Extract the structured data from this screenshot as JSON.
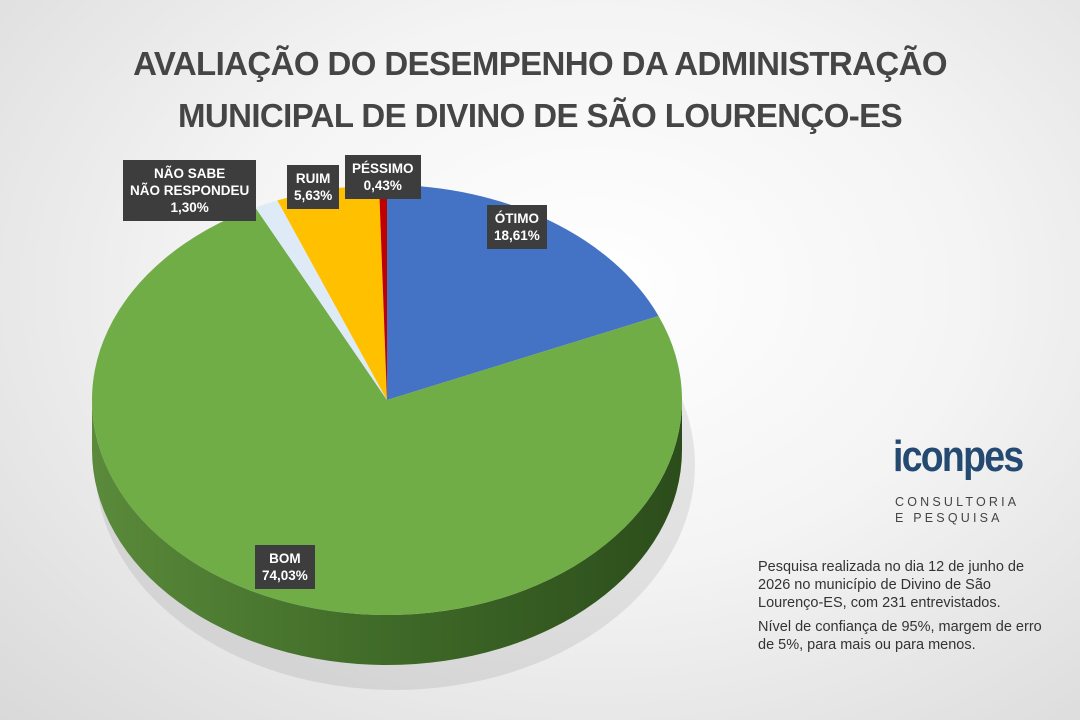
{
  "chart_data": {
    "type": "pie",
    "title": "AVALIAÇÃO DO DESEMPENHO DA ADMINISTRAÇÃO\nMUNICIPAL DE DIVINO DE SÃO LOURENÇO-ES",
    "categories": [
      "ÓTIMO",
      "BOM",
      "NÃO SABE\nNÃO RESPONDEU",
      "RUIM",
      "PÉSSIMO"
    ],
    "values": [
      18.61,
      74.03,
      1.3,
      5.63,
      0.43
    ],
    "value_labels": [
      "18,61%",
      "74,03%",
      "1,30%",
      "5,63%",
      "0,43%"
    ],
    "colors": [
      "#4472c4",
      "#70ad47",
      "#deebf7",
      "#ffc000",
      "#c00000"
    ],
    "notes": [
      "Pesquisa realizada no dia 12 de junho de 2026 no município de Divino de São Lourenço-ES, com 231 entrevistados.",
      "Nível de confiança de 95%, margem de erro de 5%, para mais ou para menos."
    ]
  },
  "logo": {
    "name": "iconpes",
    "tagline": "CONSULTORIA\nE PESQUISA"
  }
}
